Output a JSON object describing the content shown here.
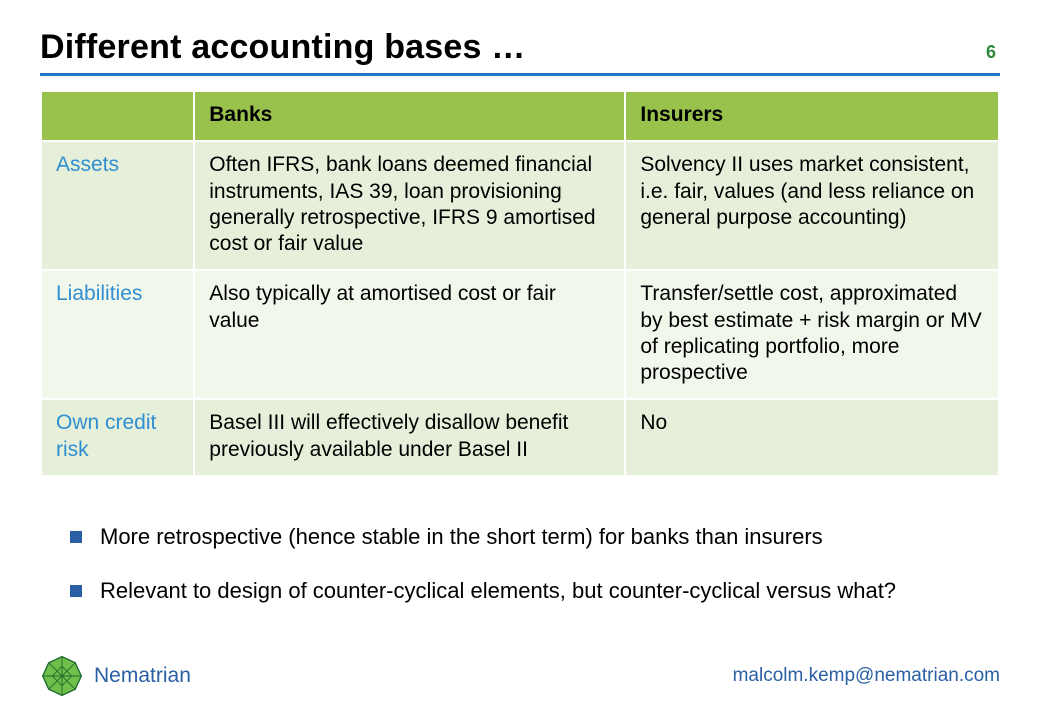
{
  "colors": {
    "header_rule": "#1f78c1",
    "page_number": "#2e8b3d",
    "table_header_bg": "#99c24d",
    "table_header_text": "#000000",
    "row_odd_bg": "#e5efd9",
    "row_even_bg": "#f2f7ec",
    "row_label_text": "#2f8fd1",
    "cell_text": "#000000",
    "bullet_marker": "#2a5fa3",
    "brand_text": "#2a5fa3",
    "email_text": "#2a5fa3",
    "logo_dark": "#1b6b2e",
    "logo_light": "#6fbf4a"
  },
  "header": {
    "title": "Different accounting bases …",
    "page_number": "6"
  },
  "table": {
    "col_widths_pct": [
      16,
      45,
      39
    ],
    "columns": [
      "",
      "Banks",
      "Insurers"
    ],
    "rows": [
      {
        "label": "Assets",
        "banks": "Often IFRS, bank loans deemed financial instruments, IAS 39, loan provisioning generally retrospective, IFRS 9 amortised cost or fair value",
        "insurers": "Solvency II uses market consistent, i.e. fair, values (and less reliance on general purpose accounting)"
      },
      {
        "label": "Liabilities",
        "banks": "Also typically at amortised cost or fair value",
        "insurers": "Transfer/settle cost, approximated by best estimate + risk margin or MV of replicating portfolio, more prospective"
      },
      {
        "label": "Own credit risk",
        "banks": "Basel III will effectively disallow benefit previously available under Basel II",
        "insurers": "No"
      }
    ]
  },
  "bullets": [
    "More retrospective (hence stable in the short term) for banks than insurers",
    "Relevant to design of counter-cyclical elements, but counter-cyclical versus what?"
  ],
  "footer": {
    "brand": "Nematrian",
    "email": "malcolm.kemp@nematrian.com"
  }
}
